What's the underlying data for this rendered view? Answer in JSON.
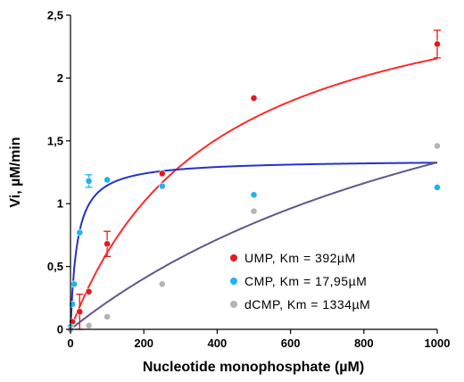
{
  "chart_data": {
    "type": "scatter",
    "title": "",
    "xlabel": "Nucleotide monophosphate (µM)",
    "ylabel": "Vi, µM/min",
    "xlim": [
      0,
      1000
    ],
    "ylim": [
      0,
      2.5
    ],
    "x_ticks": [
      0,
      200,
      400,
      600,
      800,
      1000
    ],
    "x_tick_labels": [
      "0",
      "200",
      "400",
      "600",
      "800",
      "1000"
    ],
    "y_ticks": [
      0,
      0.5,
      1,
      1.5,
      2,
      2.5
    ],
    "y_tick_labels": [
      "0",
      "0,5",
      "1",
      "1,5",
      "2",
      "2,5"
    ],
    "grid": false,
    "legend_position": "bottom-right",
    "series": [
      {
        "name": "UMP, Km = 392µM",
        "color": "#e31a1c",
        "curve_color": "#ff2a2a",
        "x": [
          0,
          5,
          25,
          50,
          100,
          250,
          500,
          1000
        ],
        "y": [
          0.0,
          0.06,
          0.14,
          0.3,
          0.68,
          1.24,
          1.84,
          2.27
        ],
        "error": [
          0,
          0,
          0.14,
          0,
          0.1,
          0,
          0,
          0.11
        ],
        "curve": {
          "model": "michaelis-menten",
          "vmax": 3.0,
          "km": 392
        }
      },
      {
        "name": "CMP, Km = 17,95µM",
        "color": "#1fb4f0",
        "curve_color": "#2233cc",
        "x": [
          0,
          5,
          10,
          25,
          50,
          100,
          250,
          500,
          1000
        ],
        "y": [
          0.02,
          0.2,
          0.36,
          0.77,
          1.18,
          1.19,
          1.14,
          1.07,
          1.13
        ],
        "error": [
          0,
          0,
          0,
          0,
          0.05,
          0,
          0,
          0,
          0
        ],
        "curve": {
          "model": "michaelis-menten",
          "vmax": 1.35,
          "km": 17.95
        }
      },
      {
        "name": "dCMP, Km = 1334µM",
        "color": "#b4b4b4",
        "curve_color": "#5a5a8c",
        "x": [
          0,
          50,
          100,
          250,
          500,
          1000
        ],
        "y": [
          0.0,
          0.03,
          0.1,
          0.36,
          0.94,
          1.46
        ],
        "error": [
          0,
          0,
          0,
          0,
          0,
          0
        ],
        "curve": {
          "model": "michaelis-menten",
          "vmax": 3.1,
          "km": 1334
        }
      }
    ]
  }
}
